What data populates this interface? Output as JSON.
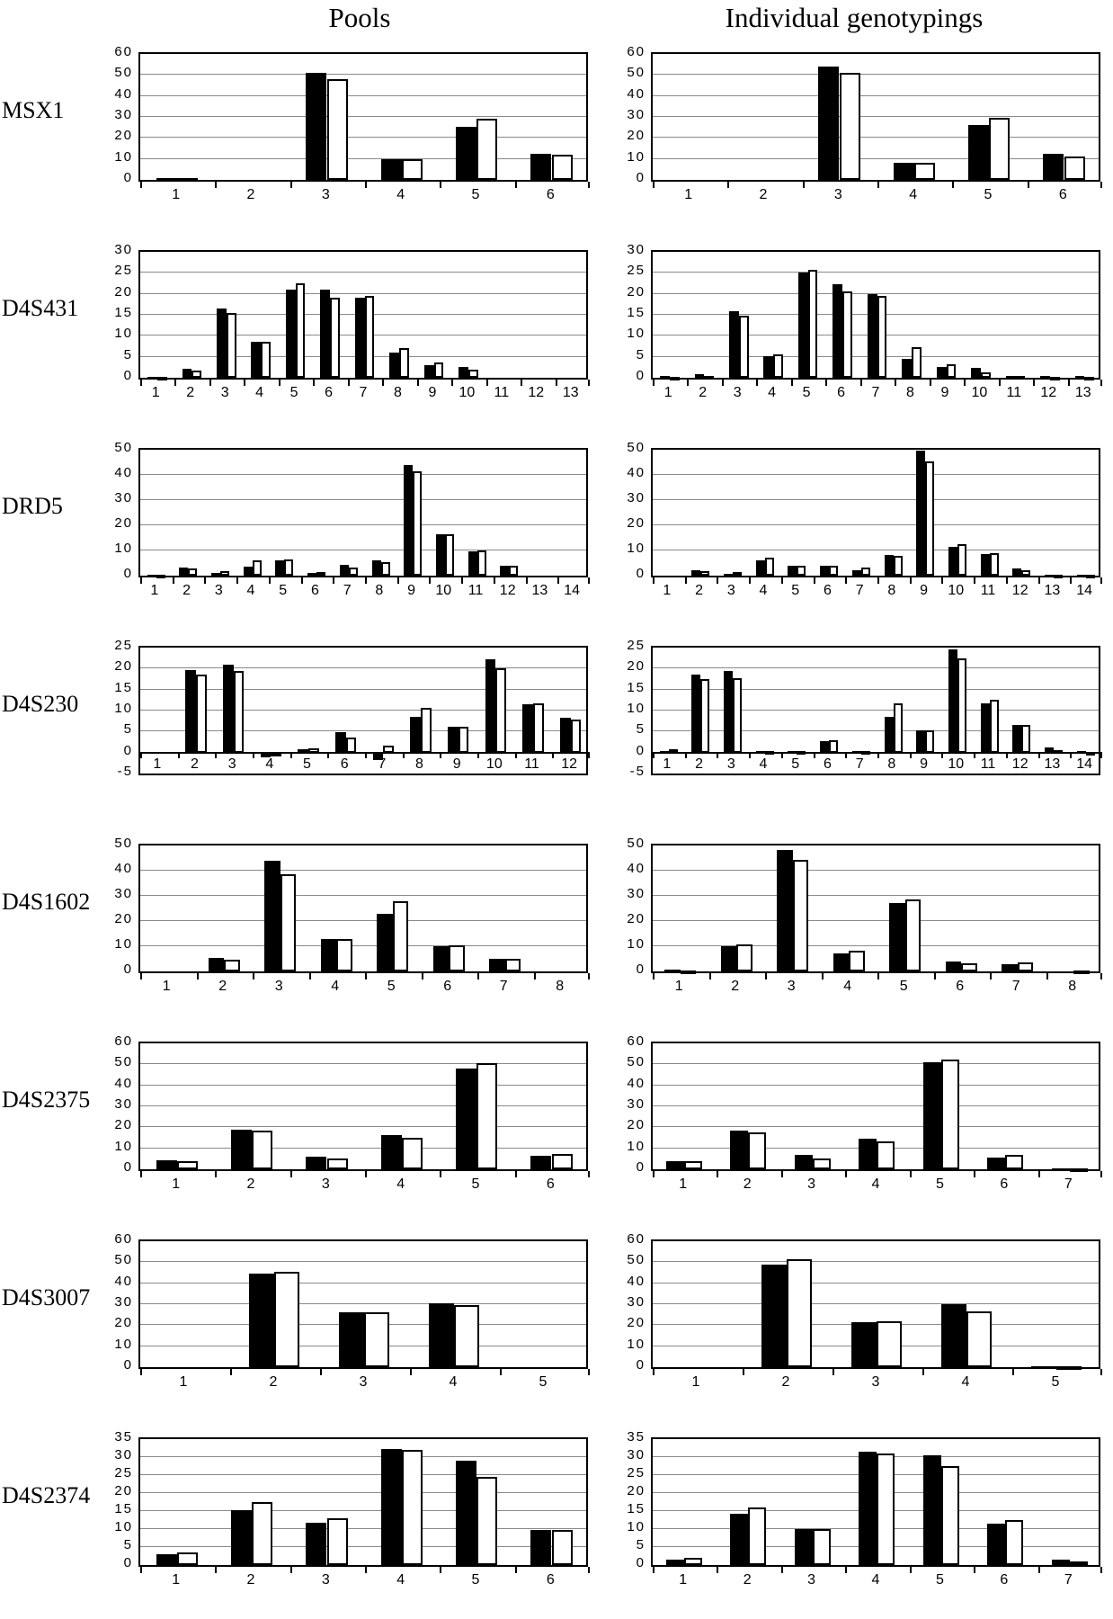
{
  "figure": {
    "column_titles": {
      "left": "Pools",
      "right": "Individual genotypings"
    },
    "series_colors": {
      "black": "#000000",
      "white": "#ffffff"
    }
  },
  "chart_data": {
    "type": "bar",
    "legend_position": "none",
    "grid": true,
    "series_names": [
      "black",
      "white"
    ],
    "rows": [
      {
        "marker": "MSX1",
        "ylim": [
          0,
          60
        ],
        "ystep": 10,
        "pools": {
          "categories": [
            "1",
            "2",
            "3",
            "4",
            "5",
            "6"
          ],
          "black": [
            1.0,
            0,
            51,
            10,
            25.5,
            12.5
          ],
          "white": [
            0.8,
            0,
            48,
            10,
            29,
            12
          ]
        },
        "individual": {
          "categories": [
            "1",
            "2",
            "3",
            "4",
            "5",
            "6"
          ],
          "black": [
            0,
            0,
            54,
            8,
            26,
            12.5
          ],
          "white": [
            0,
            0,
            51,
            8,
            29.5,
            11
          ]
        }
      },
      {
        "marker": "D4S431",
        "ylim": [
          0,
          30
        ],
        "ystep": 5,
        "pools": {
          "categories": [
            "1",
            "2",
            "3",
            "4",
            "5",
            "6",
            "7",
            "8",
            "9",
            "10",
            "11",
            "12",
            "13"
          ],
          "black": [
            0.3,
            2.2,
            16.5,
            8.5,
            21,
            21,
            19,
            6,
            3,
            2.5,
            0,
            0,
            0
          ],
          "white": [
            0.2,
            1.7,
            15.5,
            8.5,
            22.5,
            19,
            19.5,
            7,
            3.7,
            2,
            0,
            0,
            0
          ]
        },
        "individual": {
          "categories": [
            "1",
            "2",
            "3",
            "4",
            "5",
            "6",
            "7",
            "8",
            "9",
            "10",
            "11",
            "12",
            "13"
          ],
          "black": [
            0.4,
            0.9,
            15.9,
            5.1,
            25,
            22.3,
            20,
            4.5,
            2.6,
            2.3,
            0.4,
            0.4,
            0.4
          ],
          "white": [
            0.3,
            0.4,
            14.8,
            5.6,
            25.7,
            20.6,
            19.5,
            7.2,
            3.3,
            1.3,
            0.4,
            0.2,
            0.2
          ]
        }
      },
      {
        "marker": "DRD5",
        "ylim": [
          0,
          50
        ],
        "ystep": 10,
        "pools": {
          "categories": [
            "1",
            "2",
            "3",
            "4",
            "5",
            "6",
            "7",
            "8",
            "9",
            "10",
            "11",
            "12",
            "13",
            "14"
          ],
          "black": [
            0.3,
            3.2,
            1.2,
            3.5,
            6.2,
            1.2,
            4.2,
            6,
            44,
            16.5,
            9.5,
            4,
            0,
            0
          ],
          "white": [
            0.1,
            2.7,
            1.7,
            6,
            6.3,
            1.5,
            3.3,
            5.2,
            41.5,
            16.5,
            10,
            3.8,
            0,
            0
          ]
        },
        "individual": {
          "categories": [
            "1",
            "2",
            "3",
            "4",
            "5",
            "6",
            "7",
            "8",
            "9",
            "10",
            "11",
            "12",
            "13",
            "14"
          ],
          "black": [
            0,
            2.2,
            0.8,
            6,
            4,
            3.9,
            2.2,
            8.2,
            49.5,
            11.3,
            8.7,
            2.7,
            0.5,
            0.4
          ],
          "white": [
            0,
            1.7,
            1.4,
            7,
            3.8,
            3.8,
            3.1,
            7.8,
            45.5,
            12.4,
            9.1,
            2.2,
            0.2,
            0.2
          ]
        }
      },
      {
        "marker": "D4S230",
        "ylim": [
          -5,
          25
        ],
        "ystep": 5,
        "pools": {
          "categories": [
            "1",
            "2",
            "3",
            "4",
            "5",
            "6",
            "7",
            "8",
            "9",
            "10",
            "11",
            "12"
          ],
          "black": [
            0,
            19.7,
            21,
            -1.2,
            0.8,
            4.8,
            -1.7,
            8.4,
            6.2,
            22.3,
            11.5,
            8.2
          ],
          "white": [
            0,
            18.5,
            19.5,
            -1.0,
            1.0,
            3.5,
            1.7,
            10.7,
            6.2,
            20,
            11.8,
            7.9
          ]
        },
        "individual": {
          "categories": [
            "1",
            "2",
            "3",
            "4",
            "5",
            "6",
            "7",
            "8",
            "9",
            "10",
            "11",
            "12",
            "13",
            "14"
          ],
          "black": [
            0.4,
            18.6,
            19.4,
            0.4,
            0.4,
            2.8,
            0.4,
            8.6,
            5.2,
            24.6,
            11.7,
            6.5,
            1.3,
            0.4
          ],
          "white": [
            0.8,
            17.6,
            17.7,
            0.4,
            0.4,
            3.0,
            0.4,
            11.8,
            5.3,
            22.4,
            12.6,
            6.6,
            0.6,
            0.2
          ]
        }
      },
      {
        "marker": "D4S1602",
        "ylim": [
          0,
          50
        ],
        "ystep": 10,
        "pools": {
          "categories": [
            "1",
            "2",
            "3",
            "4",
            "5",
            "6",
            "7",
            "8"
          ],
          "black": [
            0,
            5.4,
            44,
            13,
            23,
            9.9,
            5.1,
            0
          ],
          "white": [
            0,
            4.7,
            38.7,
            12.8,
            28,
            10.4,
            5.1,
            0
          ]
        },
        "individual": {
          "categories": [
            "1",
            "2",
            "3",
            "4",
            "5",
            "6",
            "7",
            "8"
          ],
          "black": [
            0.8,
            10.1,
            48.2,
            7.3,
            27.1,
            4.0,
            2.7,
            0
          ],
          "white": [
            0.3,
            10.7,
            44.3,
            8.2,
            28.7,
            3.3,
            3.4,
            0.2
          ]
        }
      },
      {
        "marker": "D4S2375",
        "ylim": [
          0,
          60
        ],
        "ystep": 10,
        "pools": {
          "categories": [
            "1",
            "2",
            "3",
            "4",
            "5",
            "6"
          ],
          "black": [
            4.2,
            19,
            6.2,
            16.5,
            48,
            6.5
          ],
          "white": [
            3.8,
            18.5,
            5.2,
            15,
            50.5,
            7.2
          ]
        },
        "individual": {
          "categories": [
            "1",
            "2",
            "3",
            "4",
            "5",
            "6",
            "7"
          ],
          "black": [
            4,
            18.5,
            7,
            14.5,
            51,
            5.5,
            0.3
          ],
          "white": [
            4,
            17.5,
            5,
            13.5,
            52.5,
            7,
            0.2
          ]
        }
      },
      {
        "marker": "D4S3007",
        "ylim": [
          0,
          60
        ],
        "ystep": 10,
        "pools": {
          "categories": [
            "1",
            "2",
            "3",
            "4",
            "5"
          ],
          "black": [
            0,
            44.5,
            26,
            30.5,
            0
          ],
          "white": [
            0,
            45.5,
            26,
            29.5,
            0
          ]
        },
        "individual": {
          "categories": [
            "1",
            "2",
            "3",
            "4",
            "5"
          ],
          "black": [
            0,
            49,
            21.5,
            30,
            0.6
          ],
          "white": [
            0,
            51.3,
            21.8,
            26.7,
            0.3
          ]
        }
      },
      {
        "marker": "D4S2374",
        "ylim": [
          0,
          35
        ],
        "ystep": 5,
        "pools": {
          "categories": [
            "1",
            "2",
            "3",
            "4",
            "5",
            "6"
          ],
          "black": [
            3.0,
            15.2,
            11.7,
            32.3,
            28.9,
            9.7
          ],
          "white": [
            3.4,
            17.6,
            13.1,
            32.0,
            24.6,
            9.8
          ]
        },
        "individual": {
          "categories": [
            "1",
            "2",
            "3",
            "4",
            "5",
            "6",
            "7"
          ],
          "black": [
            1.5,
            14.3,
            10.1,
            31.4,
            30.6,
            11.6,
            1.4
          ],
          "white": [
            1.9,
            15.9,
            10.0,
            30.9,
            27.4,
            12.4,
            1.0
          ]
        }
      }
    ]
  }
}
